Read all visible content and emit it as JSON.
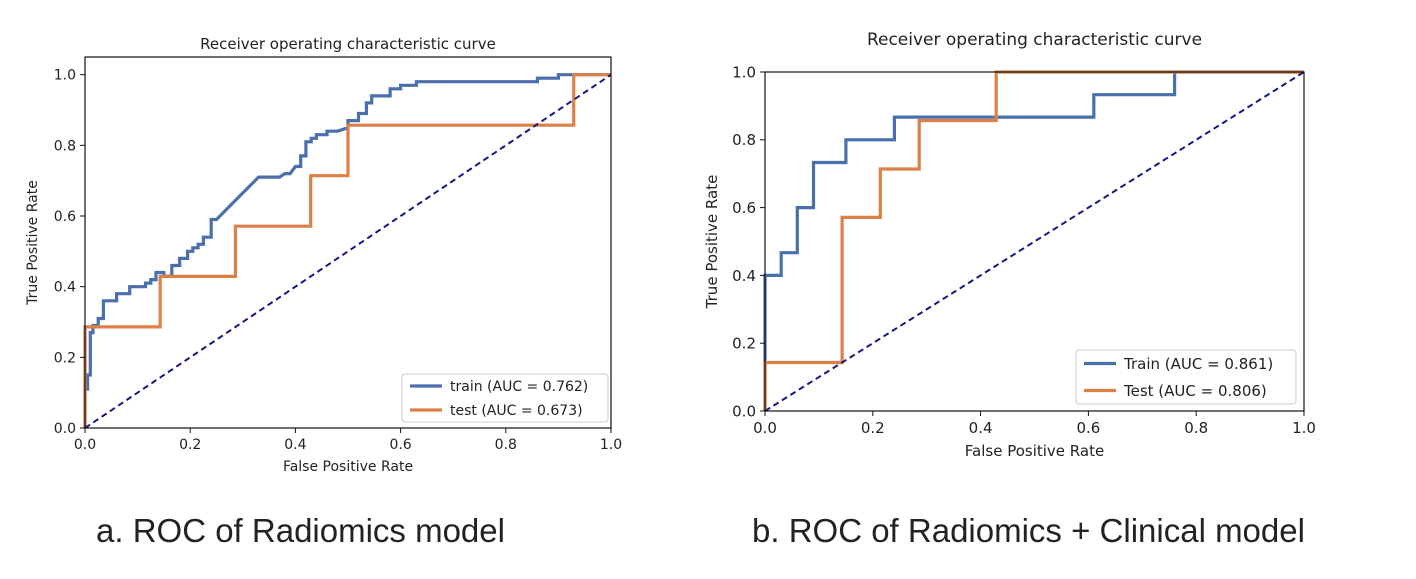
{
  "colors": {
    "train": "#4a6fad",
    "test": "#dc8048",
    "diagonal": "#151880",
    "text": "#222222"
  },
  "captions": {
    "a": "a. ROC of Radiomics model",
    "b": "b. ROC of Radiomics + Clinical model"
  },
  "chart_data": [
    {
      "type": "line",
      "title": "Receiver operating characteristic curve",
      "xlabel": "False Positive Rate",
      "ylabel": "True Positive Rate",
      "xlim": [
        0,
        1
      ],
      "ylim": [
        0,
        1.05
      ],
      "xticks": [
        0.0,
        0.2,
        0.4,
        0.6,
        0.8,
        1.0
      ],
      "yticks": [
        0.0,
        0.2,
        0.4,
        0.6,
        0.8,
        1.0
      ],
      "tick_labels": [
        "0.0",
        "0.2",
        "0.4",
        "0.6",
        "0.8",
        "1.0"
      ],
      "legend_position": "lower-right",
      "series": [
        {
          "name": "train (AUC = 0.762)",
          "color_key": "train",
          "x": [
            0,
            0,
            0.005,
            0.005,
            0.01,
            0.01,
            0.015,
            0.015,
            0.025,
            0.025,
            0.035,
            0.035,
            0.06,
            0.06,
            0.085,
            0.085,
            0.115,
            0.115,
            0.125,
            0.125,
            0.135,
            0.135,
            0.15,
            0.15,
            0.165,
            0.165,
            0.18,
            0.18,
            0.195,
            0.195,
            0.205,
            0.205,
            0.215,
            0.215,
            0.225,
            0.225,
            0.24,
            0.24,
            0.25,
            0.25,
            0.27,
            0.29,
            0.33,
            0.37,
            0.38,
            0.39,
            0.4,
            0.41,
            0.41,
            0.42,
            0.42,
            0.43,
            0.43,
            0.44,
            0.44,
            0.46,
            0.46,
            0.48,
            0.5,
            0.5,
            0.52,
            0.52,
            0.535,
            0.535,
            0.545,
            0.545,
            0.58,
            0.58,
            0.6,
            0.6,
            0.63,
            0.63,
            0.66,
            0.66,
            0.7,
            0.75,
            0.8,
            0.85,
            0.86,
            0.86,
            0.9,
            0.9,
            0.93,
            0.93,
            1.0
          ],
          "y": [
            0,
            0.11,
            0.11,
            0.15,
            0.15,
            0.27,
            0.27,
            0.29,
            0.29,
            0.31,
            0.31,
            0.36,
            0.36,
            0.38,
            0.38,
            0.4,
            0.4,
            0.41,
            0.41,
            0.42,
            0.42,
            0.44,
            0.44,
            0.43,
            0.43,
            0.46,
            0.46,
            0.48,
            0.48,
            0.5,
            0.5,
            0.51,
            0.51,
            0.52,
            0.52,
            0.54,
            0.54,
            0.59,
            0.59,
            0.59,
            0.62,
            0.65,
            0.71,
            0.71,
            0.72,
            0.72,
            0.74,
            0.74,
            0.77,
            0.77,
            0.81,
            0.81,
            0.82,
            0.82,
            0.83,
            0.83,
            0.84,
            0.84,
            0.85,
            0.87,
            0.87,
            0.89,
            0.89,
            0.92,
            0.92,
            0.94,
            0.94,
            0.96,
            0.96,
            0.97,
            0.97,
            0.98,
            0.98,
            0.98,
            0.98,
            0.98,
            0.98,
            0.98,
            0.98,
            0.99,
            0.99,
            1.0,
            1.0,
            1.0,
            1.0
          ]
        },
        {
          "name": "test (AUC = 0.673)",
          "color_key": "test",
          "x": [
            0,
            0,
            0.143,
            0.143,
            0.286,
            0.286,
            0.429,
            0.429,
            0.5,
            0.5,
            0.929,
            0.929,
            1.0
          ],
          "y": [
            0,
            0.286,
            0.286,
            0.429,
            0.429,
            0.571,
            0.571,
            0.714,
            0.714,
            0.857,
            0.857,
            1.0,
            1.0
          ]
        },
        {
          "name": "chance",
          "color_key": "diagonal",
          "dashed": true,
          "x": [
            0,
            1
          ],
          "y": [
            0,
            1
          ]
        }
      ]
    },
    {
      "type": "line",
      "title": "Receiver operating characteristic curve",
      "xlabel": "False Positive Rate",
      "ylabel": "True Positive Rate",
      "xlim": [
        0,
        1
      ],
      "ylim": [
        0,
        1.0
      ],
      "xticks": [
        0.0,
        0.2,
        0.4,
        0.6,
        0.8,
        1.0
      ],
      "yticks": [
        0.0,
        0.2,
        0.4,
        0.6,
        0.8,
        1.0
      ],
      "tick_labels": [
        "0.0",
        "0.2",
        "0.4",
        "0.6",
        "0.8",
        "1.0"
      ],
      "legend_position": "lower-right",
      "series": [
        {
          "name": "Train (AUC = 0.861)",
          "color_key": "train",
          "x": [
            0,
            0,
            0.03,
            0.03,
            0.06,
            0.06,
            0.09,
            0.09,
            0.15,
            0.15,
            0.24,
            0.24,
            0.61,
            0.61,
            0.76,
            0.76,
            1.0
          ],
          "y": [
            0,
            0.4,
            0.4,
            0.467,
            0.467,
            0.6,
            0.6,
            0.733,
            0.733,
            0.8,
            0.8,
            0.867,
            0.867,
            0.933,
            0.933,
            1.0,
            1.0
          ]
        },
        {
          "name": "Test (AUC = 0.806)",
          "color_key": "test",
          "x": [
            0,
            0,
            0.143,
            0.143,
            0.214,
            0.214,
            0.286,
            0.286,
            0.429,
            0.429,
            1.0
          ],
          "y": [
            0,
            0.143,
            0.143,
            0.571,
            0.571,
            0.714,
            0.714,
            0.857,
            0.857,
            1.0,
            1.0
          ]
        },
        {
          "name": "chance",
          "color_key": "diagonal",
          "dashed": true,
          "x": [
            0,
            1
          ],
          "y": [
            0,
            1
          ]
        }
      ]
    }
  ]
}
